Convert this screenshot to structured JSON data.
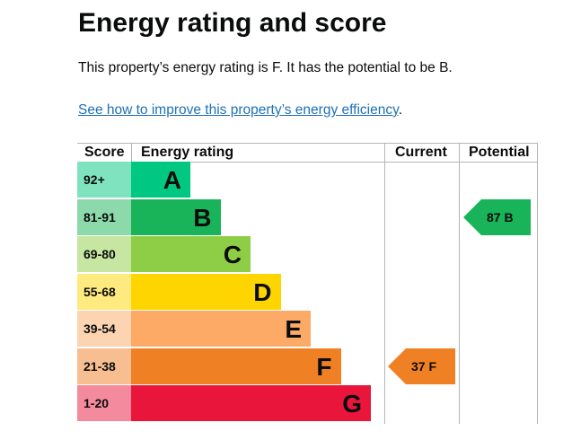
{
  "page": {
    "title": "Energy rating and score",
    "summary": "This property’s energy rating is F. It has the potential to be B.",
    "improve_link": "See how to improve this property’s energy efficiency",
    "improve_link_suffix": "."
  },
  "table": {
    "headers": {
      "score": "Score",
      "rating": "Energy rating",
      "current": "Current",
      "potential": "Potential"
    },
    "bands": [
      {
        "score": "92+",
        "letter": "A",
        "color": "#00c781",
        "score_bg": "#7fe3c0"
      },
      {
        "score": "81-91",
        "letter": "B",
        "color": "#19b459",
        "score_bg": "#8cd9ac"
      },
      {
        "score": "69-80",
        "letter": "C",
        "color": "#8dce46",
        "score_bg": "#c6e6a2"
      },
      {
        "score": "55-68",
        "letter": "D",
        "color": "#ffd500",
        "score_bg": "#ffea7f"
      },
      {
        "score": "39-54",
        "letter": "E",
        "color": "#fcaa65",
        "score_bg": "#fdd4b2"
      },
      {
        "score": "21-38",
        "letter": "F",
        "color": "#ef8023",
        "score_bg": "#f7bf91"
      },
      {
        "score": "1-20",
        "letter": "G",
        "color": "#e9153b",
        "score_bg": "#f48a9d"
      }
    ],
    "current": {
      "value": "37",
      "letter": "F",
      "color": "#ef8023"
    },
    "potential": {
      "value": "87",
      "letter": "B",
      "color": "#19b459"
    }
  }
}
